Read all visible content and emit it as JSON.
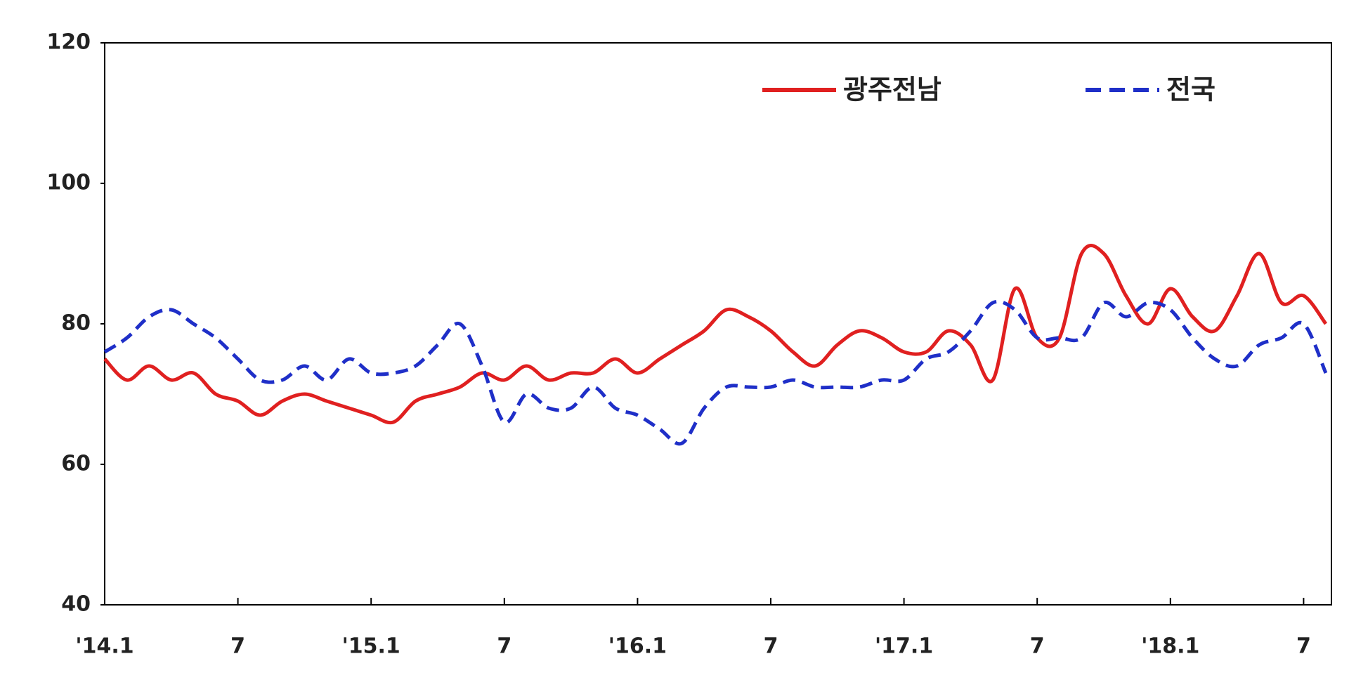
{
  "chart_data": {
    "type": "line",
    "categories": [
      "'14.1",
      null,
      null,
      null,
      null,
      null,
      "7",
      null,
      null,
      null,
      null,
      null,
      "'15.1",
      null,
      null,
      null,
      null,
      null,
      "7",
      null,
      null,
      null,
      null,
      null,
      "'16.1",
      null,
      null,
      null,
      null,
      null,
      "7",
      null,
      null,
      null,
      null,
      null,
      "'17.1",
      null,
      null,
      null,
      null,
      null,
      "7",
      null,
      null,
      null,
      null,
      null,
      "'18.1",
      null,
      null,
      null,
      null,
      null,
      "7",
      null
    ],
    "series": [
      {
        "name": "광주전남",
        "color": "#e02020",
        "dash": false,
        "values": [
          75,
          72,
          74,
          72,
          73,
          70,
          69,
          67,
          69,
          70,
          69,
          68,
          67,
          66,
          69,
          70,
          71,
          73,
          72,
          74,
          72,
          73,
          73,
          75,
          73,
          75,
          77,
          79,
          82,
          81,
          79,
          76,
          74,
          77,
          79,
          78,
          76,
          76,
          79,
          77,
          72,
          85,
          78,
          78,
          90,
          90,
          84,
          80,
          85,
          81,
          79,
          84,
          90,
          83,
          84,
          80
        ]
      },
      {
        "name": "전국",
        "color": "#1f2fc8",
        "dash": true,
        "values": [
          76,
          78,
          81,
          82,
          80,
          78,
          75,
          72,
          72,
          74,
          72,
          75,
          73,
          73,
          74,
          77,
          80,
          74,
          66,
          70,
          68,
          68,
          71,
          68,
          67,
          65,
          63,
          68,
          71,
          71,
          71,
          72,
          71,
          71,
          71,
          72,
          72,
          75,
          76,
          79,
          83,
          82,
          78,
          78,
          78,
          83,
          81,
          83,
          82,
          78,
          75,
          74,
          77,
          78,
          80,
          73
        ]
      }
    ],
    "ylim": [
      40,
      120
    ],
    "yticks": [
      40,
      60,
      80,
      100,
      120
    ],
    "grid": false,
    "legend": "top-right"
  }
}
